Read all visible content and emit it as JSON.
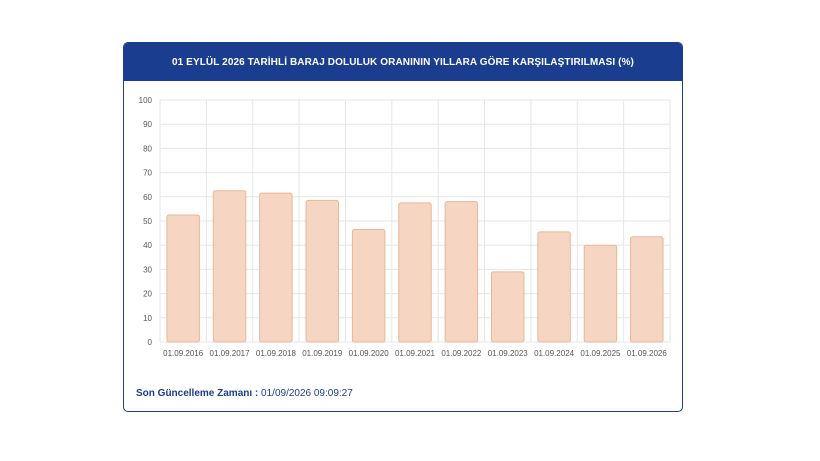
{
  "header": {
    "title": "01 EYLÜL 2026 TARİHLİ BARAJ DOLULUK ORANININ YILLARA GÖRE KARŞILAŞTIRILMASI (%)"
  },
  "footer": {
    "label": "Son Güncelleme Zamanı :",
    "value": " 01/09/2026 09:09:27"
  },
  "colors": {
    "header_bg": "#1b3d8f",
    "bar_fill": "#f6d5c2",
    "bar_stroke": "#e8b898",
    "grid": "#e6e6e6"
  },
  "chart_data": {
    "type": "bar",
    "title": "01 EYLÜL 2026 TARİHLİ BARAJ DOLULUK ORANININ YILLARA GÖRE KARŞILAŞTIRILMASI (%)",
    "categories": [
      "01.09.2016",
      "01.09.2017",
      "01.09.2018",
      "01.09.2019",
      "01.09.2020",
      "01.09.2021",
      "01.09.2022",
      "01.09.2023",
      "01.09.2024",
      "01.09.2025",
      "01.09.2026"
    ],
    "values": [
      52.5,
      62.5,
      61.5,
      58.5,
      46.5,
      57.5,
      58,
      29,
      45.5,
      40,
      43.5
    ],
    "ylim": [
      0,
      100
    ],
    "yticks": [
      0,
      10,
      20,
      30,
      40,
      50,
      60,
      70,
      80,
      90,
      100
    ],
    "grid": true,
    "legend": "none"
  }
}
